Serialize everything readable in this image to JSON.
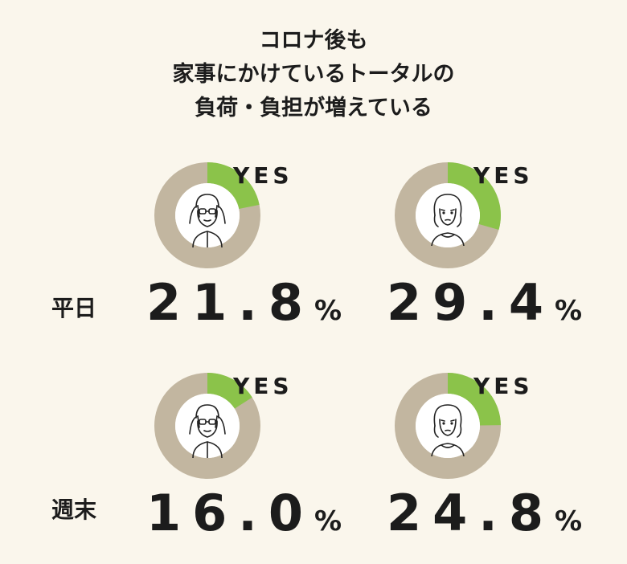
{
  "title": {
    "line1": "コロナ後も",
    "line2": "家事にかけているトータルの",
    "line3": "負荷・負担が増えている"
  },
  "rows": [
    {
      "label": "平日"
    },
    {
      "label": "週末"
    }
  ],
  "chart_data": {
    "type": "pie",
    "title": "コロナ後も 家事にかけているトータルの 負荷・負担が増えている",
    "categories": [
      "平日",
      "週末"
    ],
    "series": [
      {
        "values": [
          21.8,
          16.0
        ]
      },
      {
        "values": [
          29.4,
          24.8
        ]
      }
    ],
    "slice_label": "YES",
    "unit": "%",
    "charts": [
      {
        "row": "平日",
        "value": 21.8,
        "display": "21.8",
        "icon": "man-covering-ears-icon"
      },
      {
        "row": "平日",
        "value": 29.4,
        "display": "29.4",
        "icon": "worried-woman-icon"
      },
      {
        "row": "週末",
        "value": 16.0,
        "display": "16.0",
        "icon": "man-covering-ears-icon"
      },
      {
        "row": "週末",
        "value": 24.8,
        "display": "24.8",
        "icon": "worried-woman-icon"
      }
    ],
    "colors": {
      "yes": "#8bc34a",
      "rest": "#c2b6a0",
      "hole": "#ffffff"
    }
  }
}
